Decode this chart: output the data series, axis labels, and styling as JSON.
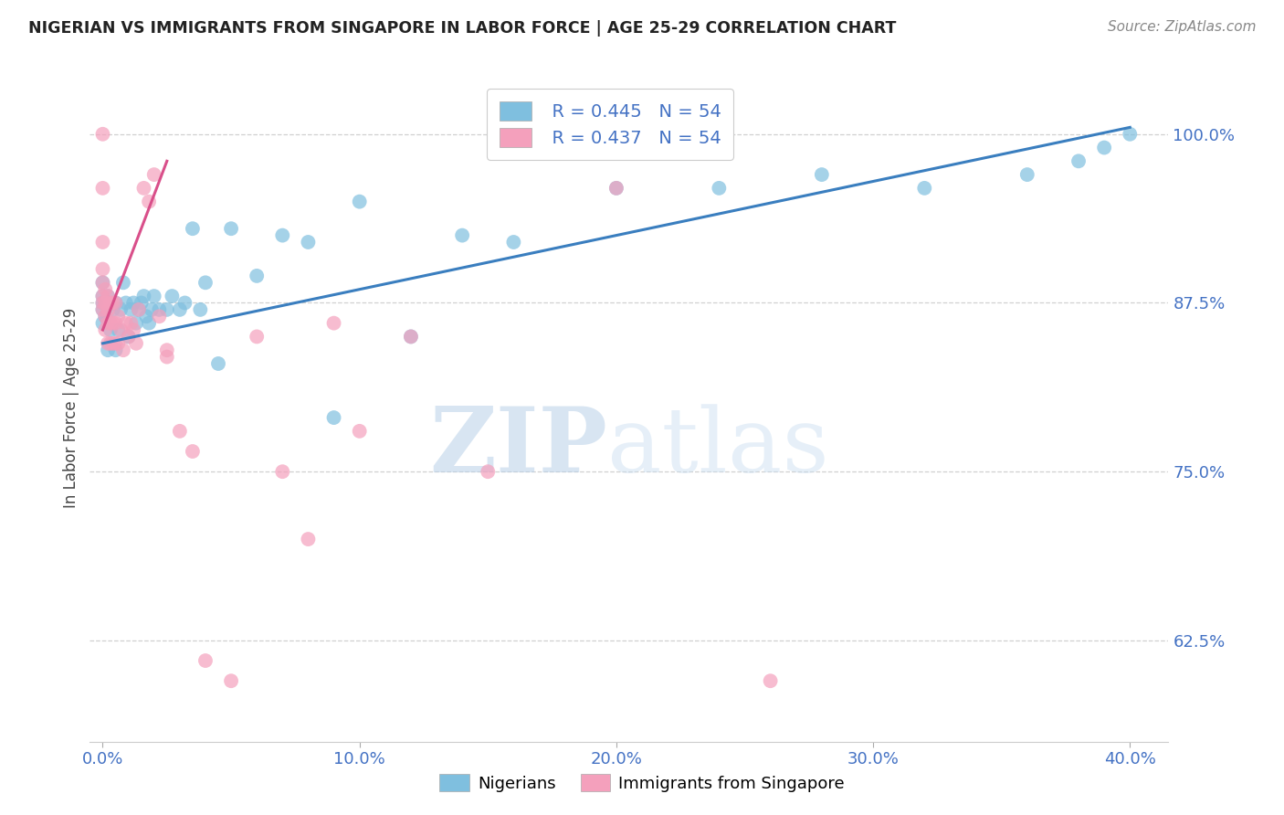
{
  "title": "NIGERIAN VS IMMIGRANTS FROM SINGAPORE IN LABOR FORCE | AGE 25-29 CORRELATION CHART",
  "source": "Source: ZipAtlas.com",
  "xlabel_ticks": [
    "0.0%",
    "10.0%",
    "20.0%",
    "30.0%",
    "40.0%"
  ],
  "xlabel_vals": [
    0.0,
    0.1,
    0.2,
    0.3,
    0.4
  ],
  "ylabel_ticks": [
    "62.5%",
    "75.0%",
    "87.5%",
    "100.0%"
  ],
  "ylabel_vals": [
    0.625,
    0.75,
    0.875,
    1.0
  ],
  "ylabel_label": "In Labor Force | Age 25-29",
  "legend_blue_r": "R = 0.445",
  "legend_blue_n": "N = 54",
  "legend_pink_r": "R = 0.437",
  "legend_pink_n": "N = 54",
  "legend_blue_label": "Nigerians",
  "legend_pink_label": "Immigrants from Singapore",
  "blue_color": "#7fbfdf",
  "pink_color": "#f4a0bc",
  "blue_line_color": "#3a7ebf",
  "pink_line_color": "#d94f8a",
  "blue_scatter_x": [
    0.0,
    0.0,
    0.0,
    0.0,
    0.0,
    0.001,
    0.001,
    0.002,
    0.002,
    0.003,
    0.004,
    0.005,
    0.005,
    0.006,
    0.007,
    0.008,
    0.009,
    0.01,
    0.011,
    0.012,
    0.013,
    0.014,
    0.015,
    0.016,
    0.017,
    0.018,
    0.019,
    0.02,
    0.022,
    0.025,
    0.027,
    0.03,
    0.032,
    0.035,
    0.038,
    0.04,
    0.045,
    0.05,
    0.06,
    0.07,
    0.08,
    0.09,
    0.1,
    0.12,
    0.14,
    0.16,
    0.2,
    0.24,
    0.28,
    0.32,
    0.36,
    0.38,
    0.39,
    0.4
  ],
  "blue_scatter_y": [
    0.87,
    0.88,
    0.89,
    0.86,
    0.875,
    0.865,
    0.875,
    0.84,
    0.88,
    0.855,
    0.87,
    0.84,
    0.875,
    0.855,
    0.87,
    0.89,
    0.875,
    0.85,
    0.87,
    0.875,
    0.86,
    0.87,
    0.875,
    0.88,
    0.865,
    0.86,
    0.87,
    0.88,
    0.87,
    0.87,
    0.88,
    0.87,
    0.875,
    0.93,
    0.87,
    0.89,
    0.83,
    0.93,
    0.895,
    0.925,
    0.92,
    0.79,
    0.95,
    0.85,
    0.925,
    0.92,
    0.96,
    0.96,
    0.97,
    0.96,
    0.97,
    0.98,
    0.99,
    1.0
  ],
  "pink_scatter_x": [
    0.0,
    0.0,
    0.0,
    0.0,
    0.0,
    0.0,
    0.0,
    0.0,
    0.001,
    0.001,
    0.001,
    0.001,
    0.002,
    0.002,
    0.002,
    0.002,
    0.003,
    0.003,
    0.003,
    0.004,
    0.004,
    0.004,
    0.005,
    0.005,
    0.005,
    0.006,
    0.006,
    0.007,
    0.008,
    0.009,
    0.01,
    0.011,
    0.012,
    0.013,
    0.014,
    0.016,
    0.018,
    0.02,
    0.022,
    0.025,
    0.025,
    0.03,
    0.035,
    0.04,
    0.05,
    0.06,
    0.07,
    0.08,
    0.09,
    0.1,
    0.12,
    0.15,
    0.2,
    0.26
  ],
  "pink_scatter_y": [
    0.87,
    0.875,
    0.88,
    0.89,
    0.9,
    0.92,
    0.96,
    1.0,
    0.855,
    0.865,
    0.875,
    0.885,
    0.845,
    0.86,
    0.87,
    0.88,
    0.845,
    0.86,
    0.875,
    0.845,
    0.86,
    0.875,
    0.845,
    0.86,
    0.875,
    0.845,
    0.865,
    0.855,
    0.84,
    0.86,
    0.85,
    0.86,
    0.855,
    0.845,
    0.87,
    0.96,
    0.95,
    0.97,
    0.865,
    0.84,
    0.835,
    0.78,
    0.765,
    0.61,
    0.595,
    0.85,
    0.75,
    0.7,
    0.86,
    0.78,
    0.85,
    0.75,
    0.96,
    0.595
  ],
  "blue_line_x": [
    0.0,
    0.4
  ],
  "blue_line_y": [
    0.845,
    1.005
  ],
  "pink_line_x": [
    0.0,
    0.025
  ],
  "pink_line_y": [
    0.855,
    0.98
  ],
  "watermark_zip": "ZIP",
  "watermark_atlas": "atlas",
  "background_color": "#ffffff",
  "xlim": [
    -0.005,
    0.415
  ],
  "ylim": [
    0.55,
    1.045
  ],
  "grid_color": "#d0d0d0",
  "tick_label_color": "#4472c4",
  "title_color": "#222222",
  "ylabel_color": "#444444",
  "source_color": "#888888"
}
